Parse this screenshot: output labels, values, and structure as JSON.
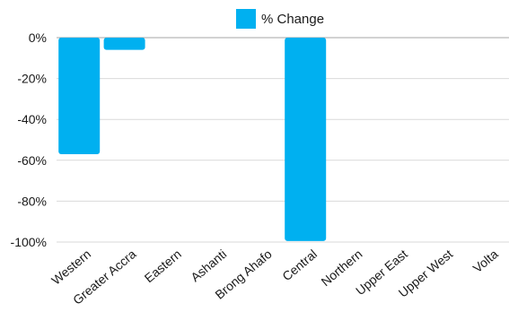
{
  "chart_data": {
    "type": "bar",
    "categories": [
      "Western",
      "Greater Accra",
      "Eastern",
      "Ashanti",
      "Brong Ahafo",
      "Central",
      "Northern",
      "Upper East",
      "Upper West",
      "Volta"
    ],
    "series": [
      {
        "name": "% Change",
        "values": [
          -57,
          -6,
          0,
          0,
          0,
          -99.5,
          0,
          0,
          0,
          0
        ]
      }
    ],
    "ylim": [
      -100,
      0
    ],
    "yticks": [
      0,
      -20,
      -40,
      -60,
      -80,
      -100
    ],
    "ytick_labels": [
      "0%",
      "-20%",
      "-40%",
      "-60%",
      "-80%",
      "-100%"
    ],
    "legend_position": "top-center",
    "grid": true,
    "bar_color": "#00b0f0"
  }
}
